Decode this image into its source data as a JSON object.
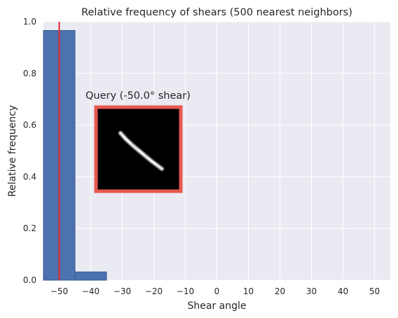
{
  "chart_data": {
    "type": "bar",
    "title": "Relative frequency of shears (500 nearest neighbors)",
    "xlabel": "Shear angle",
    "ylabel": "Relative frequency",
    "xlim": [
      -55,
      55
    ],
    "ylim": [
      0,
      1.0
    ],
    "xticks": [
      -50,
      -40,
      -30,
      -20,
      -10,
      0,
      10,
      20,
      30,
      40,
      50
    ],
    "xtick_labels": [
      "−50",
      "−40",
      "−30",
      "−20",
      "−10",
      "0",
      "10",
      "20",
      "30",
      "40",
      "50"
    ],
    "yticks": [
      0.0,
      0.2,
      0.4,
      0.6,
      0.8,
      1.0
    ],
    "ytick_labels": [
      "0.0",
      "0.2",
      "0.4",
      "0.6",
      "0.8",
      "1.0"
    ],
    "bins": [
      {
        "x0": -55,
        "x1": -45,
        "value": 0.966
      },
      {
        "x0": -45,
        "x1": -35,
        "value": 0.032
      }
    ],
    "query_line": {
      "x": -50
    },
    "annotation": {
      "text": "Query (-50.0° shear)"
    },
    "grid": true,
    "colors": {
      "background": "#eaeaf2",
      "grid": "#ffffff",
      "bar": "#4c72b0",
      "bar_edge": "#3a5a90",
      "query_line": "#e8262a",
      "thumb_frame": "#e8584f"
    }
  }
}
